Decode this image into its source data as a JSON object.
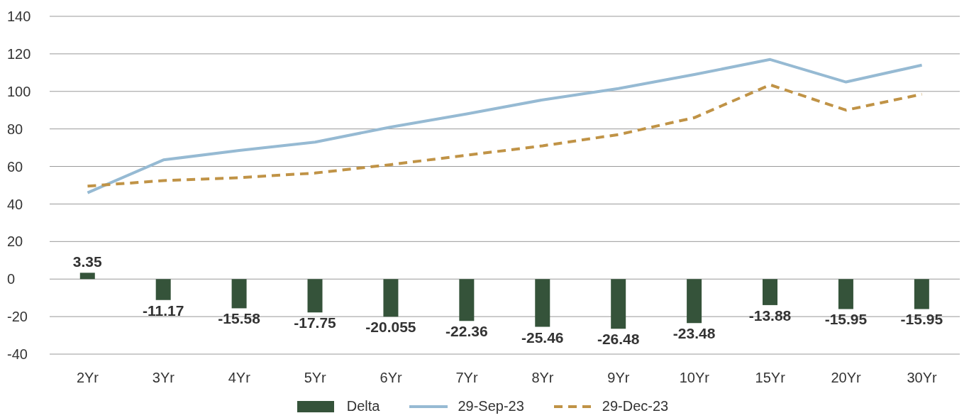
{
  "chart_data": {
    "type": "bar",
    "categories": [
      "2Yr",
      "3Yr",
      "4Yr",
      "5Yr",
      "6Yr",
      "7Yr",
      "8Yr",
      "9Yr",
      "10Yr",
      "15Yr",
      "20Yr",
      "30Yr"
    ],
    "series": [
      {
        "name": "Delta",
        "color": "#35533a",
        "values": [
          3.35,
          -11.17,
          -15.58,
          -17.75,
          -20.055,
          -22.36,
          -25.46,
          -26.48,
          -23.48,
          -13.88,
          -15.95,
          -15.95
        ],
        "data_labels": true
      },
      {
        "name": "29-Sep-23",
        "type": "line",
        "color": "#96bad3",
        "line_style": "solid",
        "values": [
          46,
          63.5,
          68.5,
          73,
          81,
          88,
          95.5,
          101.5,
          109,
          117,
          105,
          114
        ]
      },
      {
        "name": "29-Dec-23",
        "type": "line",
        "color": "#c09346",
        "line_style": "dashed",
        "values": [
          49.5,
          52.5,
          54,
          56.5,
          61,
          66,
          71,
          77,
          86,
          103.5,
          90,
          98.5
        ]
      }
    ],
    "ylim": [
      -40,
      140
    ],
    "yticks": [
      -40,
      -20,
      0,
      20,
      40,
      60,
      80,
      100,
      120,
      140
    ],
    "grid": "y",
    "legend": "bottom",
    "marker": "none"
  }
}
